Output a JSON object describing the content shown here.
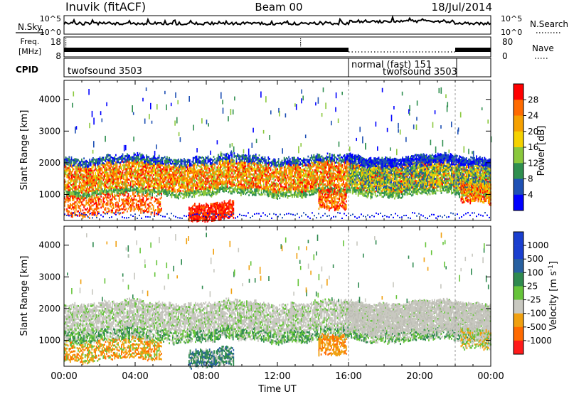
{
  "header": {
    "station": "Inuvik (fitACF)",
    "beam": "Beam 00",
    "date": "18/Jul/2014"
  },
  "noise_panel": {
    "left_label": "N.Sky",
    "right_label": "N.Search",
    "left_ticks": [
      "10^5",
      "10^0"
    ],
    "right_ticks": [
      "10^5",
      "10^0"
    ],
    "left_scale": "log",
    "left_range": [
      1,
      100000
    ]
  },
  "freq_panel": {
    "left_label_line1": "Freq.",
    "left_label_line2": "[MHz]",
    "left_ticks": [
      "18",
      "8"
    ],
    "left_range": [
      8,
      18
    ],
    "right_label": "Nave",
    "right_ticks": [
      "80",
      "0"
    ],
    "right_range": [
      0,
      80
    ]
  },
  "cpid_panel": {
    "label": "CPID",
    "segments": [
      {
        "label": "twofsound 3503",
        "start_hour": 0,
        "end_hour": 16
      },
      {
        "label": "normal (fast) 151",
        "start_hour": 16,
        "end_hour": 22
      },
      {
        "label": "twofsound 3503",
        "start_hour": 22,
        "end_hour": 24
      }
    ]
  },
  "x_axis": {
    "label": "Time UT",
    "range_hours": [
      0,
      24
    ],
    "ticks": [
      {
        "hour": 0,
        "label": "00:00"
      },
      {
        "hour": 4,
        "label": "04:00"
      },
      {
        "hour": 8,
        "label": "08:00"
      },
      {
        "hour": 12,
        "label": "12:00"
      },
      {
        "hour": 16,
        "label": "16:00"
      },
      {
        "hour": 20,
        "label": "20:00"
      },
      {
        "hour": 24,
        "label": "00:00"
      }
    ]
  },
  "power_panel": {
    "ylabel": "Slant Range [km]",
    "yticks": [
      {
        "value": 1000,
        "label": "1000"
      },
      {
        "value": 2000,
        "label": "2000"
      },
      {
        "value": 3000,
        "label": "3000"
      },
      {
        "value": 4000,
        "label": "4000"
      }
    ],
    "colorbar_label": "Power [dB]",
    "colorbar_ticks": [
      "28",
      "24",
      "20",
      "16",
      "12",
      "8",
      "4"
    ]
  },
  "velocity_panel": {
    "ylabel": "Slant Range [km]",
    "yticks": [
      {
        "value": 1000,
        "label": "1000"
      },
      {
        "value": 2000,
        "label": "2000"
      },
      {
        "value": 3000,
        "label": "3000"
      },
      {
        "value": 4000,
        "label": "4000"
      }
    ],
    "colorbar_label_main": "Velocity",
    "colorbar_label_unit": "[m s",
    "colorbar_label_exp": "-1",
    "colorbar_label_close": "]",
    "colorbar_ticks": [
      "1000",
      "500",
      "100",
      "25",
      "-25",
      "-100",
      "-500",
      "-1000"
    ]
  },
  "chart_data": {
    "type": "heatmap",
    "title": "Inuvik (fitACF)  Beam 00  18/Jul/2014",
    "xlabel": "Time UT",
    "ylabel": "Slant Range [km]",
    "xlim_hours": [
      0,
      24
    ],
    "ylim_km": [
      180,
      4600
    ],
    "power_scale_db": {
      "ticks": [
        4,
        8,
        12,
        16,
        20,
        24,
        28
      ],
      "colors": [
        "#0000ff",
        "#1e50b4",
        "#2f8f4f",
        "#8ac83c",
        "#f5d200",
        "#f5a000",
        "#ff6a00",
        "#ff0000"
      ]
    },
    "velocity_scale_ms": {
      "ticks": [
        1000,
        500,
        100,
        25,
        -25,
        -100,
        -500,
        -1000
      ],
      "colors": [
        "#1a3fcf",
        "#2860a0",
        "#2f8a4f",
        "#66c43a",
        "#c8c8c0",
        "#f0a010",
        "#ff6a00",
        "#ff1a1a"
      ]
    },
    "echo_bands": [
      {
        "feature": "main ionospheric scatter band",
        "start_hour": 0,
        "end_hour": 24,
        "range_km": [
          1000,
          2200
        ],
        "power_db": "8-28",
        "velocity_ms": "-25 to 25"
      },
      {
        "feature": "near-range low band",
        "start_hour": 0,
        "end_hour": 5.5,
        "range_km": [
          400,
          1000
        ],
        "power_db": "16-28",
        "velocity_ms": "-500 to -100"
      },
      {
        "feature": "strong near-range echoes",
        "start_hour": 7.0,
        "end_hour": 9.5,
        "range_km": [
          200,
          700
        ],
        "power_db": "24-32",
        "velocity_ms": "-25 to 500"
      },
      {
        "feature": "mid-day patch",
        "start_hour": 14.3,
        "end_hour": 15.9,
        "range_km": [
          500,
          1100
        ],
        "power_db": "20-28",
        "velocity_ms": "-500 to -100"
      },
      {
        "feature": "afternoon band",
        "start_hour": 16,
        "end_hour": 24,
        "range_km": [
          1200,
          2200
        ],
        "power_db": "4-20",
        "velocity_ms": "-25 to 25"
      },
      {
        "feature": "late patch",
        "start_hour": 22.3,
        "end_hour": 24,
        "range_km": [
          800,
          1400
        ],
        "power_db": "16-28",
        "velocity_ms": "-100 to 100"
      }
    ]
  }
}
